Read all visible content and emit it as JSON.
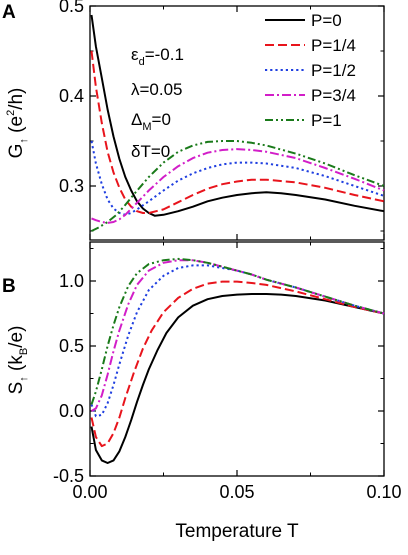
{
  "chart_data": [
    {
      "type": "line",
      "panel_label": "A",
      "ylabel": {
        "main": "G",
        "sub": "↑",
        "rest": " (e",
        "sup": "2",
        "tail": "/h)"
      },
      "ylim": [
        0.24,
        0.5
      ],
      "xlim": [
        0.0,
        0.1
      ],
      "yticks": [
        0.3,
        0.4,
        0.5
      ],
      "ytick_labels": [
        "0.3",
        "0.4",
        "0.5"
      ],
      "legend": "top-right",
      "annotations": [
        {
          "sym": "ε",
          "sub": "d",
          "rest": "=-0.1"
        },
        {
          "sym": "λ",
          "sub": "",
          "rest": "=0.05"
        },
        {
          "sym": "Δ",
          "sub": "M",
          "rest": "=0"
        },
        {
          "sym": "δT",
          "sub": "",
          "rest": "=0"
        }
      ],
      "series": [
        {
          "name": "P=0",
          "color": "#000000",
          "dash": "solid",
          "x": [
            0.0005,
            0.002,
            0.004,
            0.006,
            0.008,
            0.01,
            0.012,
            0.014,
            0.016,
            0.018,
            0.02,
            0.022,
            0.025,
            0.03,
            0.035,
            0.04,
            0.045,
            0.05,
            0.055,
            0.06,
            0.065,
            0.07,
            0.08,
            0.09,
            0.1
          ],
          "y": [
            0.49,
            0.455,
            0.42,
            0.385,
            0.355,
            0.33,
            0.31,
            0.295,
            0.283,
            0.275,
            0.27,
            0.267,
            0.268,
            0.272,
            0.277,
            0.283,
            0.287,
            0.29,
            0.292,
            0.293,
            0.292,
            0.29,
            0.285,
            0.278,
            0.272
          ]
        },
        {
          "name": "P=1/4",
          "color": "#e8141c",
          "dash": "long",
          "x": [
            0.0005,
            0.002,
            0.004,
            0.006,
            0.008,
            0.01,
            0.012,
            0.014,
            0.016,
            0.018,
            0.02,
            0.025,
            0.03,
            0.035,
            0.04,
            0.045,
            0.05,
            0.055,
            0.06,
            0.07,
            0.08,
            0.09,
            0.1
          ],
          "y": [
            0.45,
            0.41,
            0.37,
            0.338,
            0.315,
            0.298,
            0.285,
            0.277,
            0.272,
            0.27,
            0.27,
            0.274,
            0.282,
            0.29,
            0.297,
            0.302,
            0.305,
            0.307,
            0.307,
            0.304,
            0.298,
            0.29,
            0.283
          ]
        },
        {
          "name": "P=1/2",
          "color": "#1f3fe0",
          "dash": "dot",
          "x": [
            0.0005,
            0.002,
            0.004,
            0.006,
            0.008,
            0.01,
            0.012,
            0.014,
            0.016,
            0.02,
            0.025,
            0.03,
            0.035,
            0.04,
            0.045,
            0.05,
            0.055,
            0.06,
            0.07,
            0.08,
            0.09,
            0.1
          ],
          "y": [
            0.35,
            0.325,
            0.302,
            0.285,
            0.275,
            0.27,
            0.268,
            0.27,
            0.274,
            0.283,
            0.295,
            0.306,
            0.314,
            0.32,
            0.324,
            0.326,
            0.326,
            0.325,
            0.32,
            0.311,
            0.3,
            0.289
          ]
        },
        {
          "name": "P=3/4",
          "color": "#d21ec8",
          "dash": "dashdot",
          "x": [
            0.0005,
            0.002,
            0.004,
            0.006,
            0.008,
            0.01,
            0.012,
            0.015,
            0.02,
            0.025,
            0.03,
            0.035,
            0.04,
            0.045,
            0.05,
            0.055,
            0.06,
            0.07,
            0.08,
            0.09,
            0.1
          ],
          "y": [
            0.264,
            0.262,
            0.26,
            0.259,
            0.26,
            0.263,
            0.268,
            0.278,
            0.295,
            0.31,
            0.322,
            0.331,
            0.337,
            0.34,
            0.341,
            0.34,
            0.338,
            0.331,
            0.32,
            0.308,
            0.295
          ]
        },
        {
          "name": "P=1",
          "color": "#1a7a1a",
          "dash": "dashdotdot",
          "x": [
            0.0005,
            0.003,
            0.006,
            0.009,
            0.012,
            0.015,
            0.02,
            0.025,
            0.03,
            0.035,
            0.04,
            0.045,
            0.05,
            0.055,
            0.06,
            0.07,
            0.08,
            0.09,
            0.1
          ],
          "y": [
            0.25,
            0.254,
            0.26,
            0.268,
            0.279,
            0.291,
            0.31,
            0.326,
            0.338,
            0.345,
            0.349,
            0.35,
            0.35,
            0.348,
            0.345,
            0.336,
            0.325,
            0.312,
            0.3
          ]
        }
      ]
    },
    {
      "type": "line",
      "panel_label": "B",
      "xlabel": "Temperature T",
      "ylabel": {
        "main": "S",
        "sub": "↑",
        "rest": " (k",
        "sub2": "B",
        "tail": "/e)"
      },
      "ylim": [
        -0.5,
        1.3
      ],
      "xlim": [
        0.0,
        0.1
      ],
      "xticks": [
        0.0,
        0.05,
        0.1
      ],
      "xtick_labels": [
        "0.00",
        "0.05",
        "0.10"
      ],
      "yticks": [
        -0.5,
        0.0,
        0.5,
        1.0
      ],
      "ytick_labels": [
        "-0.5",
        "0.0",
        "0.5",
        "1.0"
      ],
      "series": [
        {
          "name": "P=0",
          "color": "#000000",
          "dash": "solid",
          "x": [
            0.0005,
            0.002,
            0.004,
            0.006,
            0.008,
            0.01,
            0.012,
            0.014,
            0.016,
            0.018,
            0.02,
            0.023,
            0.026,
            0.03,
            0.035,
            0.04,
            0.045,
            0.05,
            0.055,
            0.06,
            0.065,
            0.07,
            0.08,
            0.09,
            0.1
          ],
          "y": [
            -0.12,
            -0.3,
            -0.38,
            -0.4,
            -0.38,
            -0.31,
            -0.2,
            -0.07,
            0.07,
            0.2,
            0.32,
            0.47,
            0.6,
            0.72,
            0.81,
            0.86,
            0.885,
            0.895,
            0.9,
            0.9,
            0.895,
            0.885,
            0.85,
            0.8,
            0.75
          ]
        },
        {
          "name": "P=1/4",
          "color": "#e8141c",
          "dash": "long",
          "x": [
            0.0005,
            0.002,
            0.004,
            0.006,
            0.008,
            0.01,
            0.012,
            0.015,
            0.018,
            0.021,
            0.025,
            0.03,
            0.035,
            0.04,
            0.045,
            0.05,
            0.055,
            0.06,
            0.07,
            0.08,
            0.09,
            0.1
          ],
          "y": [
            -0.05,
            -0.2,
            -0.27,
            -0.25,
            -0.17,
            -0.05,
            0.1,
            0.3,
            0.48,
            0.62,
            0.76,
            0.87,
            0.94,
            0.98,
            0.995,
            0.995,
            0.985,
            0.97,
            0.92,
            0.86,
            0.8,
            0.75
          ]
        },
        {
          "name": "P=1/2",
          "color": "#1f3fe0",
          "dash": "dot",
          "x": [
            0.0005,
            0.002,
            0.004,
            0.006,
            0.008,
            0.01,
            0.013,
            0.016,
            0.02,
            0.025,
            0.03,
            0.035,
            0.04,
            0.045,
            0.05,
            0.055,
            0.06,
            0.07,
            0.08,
            0.09,
            0.1
          ],
          "y": [
            0.05,
            -0.04,
            -0.03,
            0.06,
            0.2,
            0.36,
            0.58,
            0.76,
            0.93,
            1.04,
            1.1,
            1.12,
            1.12,
            1.1,
            1.08,
            1.05,
            1.01,
            0.95,
            0.88,
            0.81,
            0.75
          ]
        },
        {
          "name": "P=3/4",
          "color": "#d21ec8",
          "dash": "dashdot",
          "x": [
            0.0005,
            0.002,
            0.004,
            0.006,
            0.008,
            0.01,
            0.013,
            0.016,
            0.02,
            0.025,
            0.03,
            0.035,
            0.04,
            0.045,
            0.05,
            0.055,
            0.06,
            0.07,
            0.08,
            0.09,
            0.1
          ],
          "y": [
            0.0,
            0.02,
            0.12,
            0.28,
            0.46,
            0.62,
            0.82,
            0.97,
            1.08,
            1.14,
            1.16,
            1.16,
            1.14,
            1.11,
            1.08,
            1.05,
            1.01,
            0.95,
            0.88,
            0.81,
            0.75
          ]
        },
        {
          "name": "P=1",
          "color": "#1a7a1a",
          "dash": "dashdotdot",
          "x": [
            0.0005,
            0.002,
            0.004,
            0.006,
            0.008,
            0.01,
            0.013,
            0.016,
            0.02,
            0.025,
            0.03,
            0.035,
            0.04,
            0.045,
            0.05,
            0.055,
            0.06,
            0.07,
            0.08,
            0.09,
            0.1
          ],
          "y": [
            0.05,
            0.15,
            0.32,
            0.5,
            0.66,
            0.8,
            0.96,
            1.06,
            1.13,
            1.16,
            1.17,
            1.16,
            1.14,
            1.11,
            1.08,
            1.05,
            1.01,
            0.95,
            0.88,
            0.81,
            0.75
          ]
        }
      ]
    }
  ]
}
